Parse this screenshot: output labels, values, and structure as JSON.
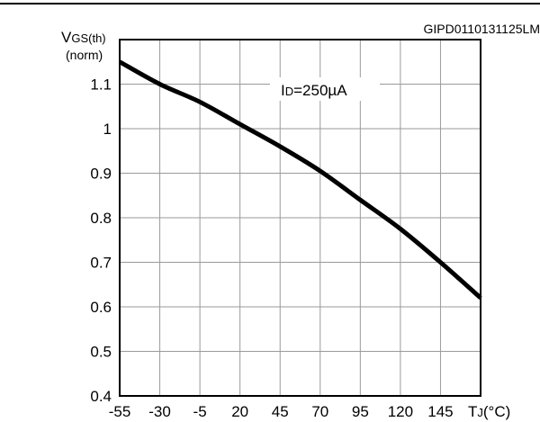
{
  "figure_id": "GIPD0110131125LM",
  "chart_data": {
    "type": "line",
    "title": "",
    "ylabel_main": "V",
    "ylabel_sub": "GS(th)",
    "ylabel_norm": "(norm)",
    "xlabel_main": "T",
    "xlabel_sub": "J",
    "xlabel_unit": "(°C)",
    "annotation_main": "I",
    "annotation_sub": "D",
    "annotation_value": "=250µA",
    "xlim": [
      -55,
      170
    ],
    "ylim": [
      0.4,
      1.2
    ],
    "x_ticks": [
      -55,
      -30,
      -5,
      20,
      45,
      70,
      95,
      120,
      145
    ],
    "x_tick_labels": [
      "-55",
      "-30",
      "-5",
      "20",
      "45",
      "70",
      "95",
      "120",
      "145"
    ],
    "y_ticks": [
      0.4,
      0.5,
      0.6,
      0.7,
      0.8,
      0.9,
      1.0,
      1.1
    ],
    "y_tick_labels": [
      "0.4",
      "0.5",
      "0.6",
      "0.7",
      "0.8",
      "0.9",
      "1",
      "1.1"
    ],
    "grid": true,
    "series": [
      {
        "x": [
          -55,
          -30,
          -5,
          20,
          45,
          70,
          95,
          120,
          145,
          170
        ],
        "y": [
          1.15,
          1.1,
          1.06,
          1.01,
          0.96,
          0.905,
          0.84,
          0.775,
          0.7,
          0.62
        ]
      }
    ]
  }
}
